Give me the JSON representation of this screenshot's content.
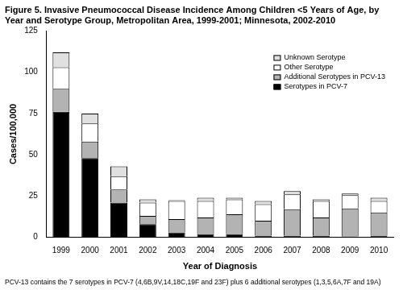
{
  "chart_data": {
    "type": "bar",
    "title": "Figure 5. Invasive Pneumococcal Disease Incidence Among Children <5 Years of Age, by Year and Serotype Group, Metropolitan Area, 1999-2001; Minnesota, 2002-2010",
    "x_label": "Year of Diagnosis",
    "y_label": "Cases/100,000",
    "footnote": "PCV-13 contains the 7 serotypes in PCV-7 (4,6B,9V,14,18C,19F and 23F) plus 6 additional serotypes (1,3,5,6A,7F and 19A)",
    "categories": [
      "1999",
      "2000",
      "2001",
      "2002",
      "2003",
      "2004",
      "2005",
      "2006",
      "2007",
      "2008",
      "2009",
      "2010"
    ],
    "series": [
      {
        "name": "Serotypes in PCV-7",
        "color": "#000000",
        "values": [
          76,
          48,
          21,
          8,
          3,
          2,
          2,
          1,
          1,
          1,
          0.5,
          1
        ]
      },
      {
        "name": "Additional Serotypes in PCV-13",
        "color": "#b3b3b3",
        "values": [
          14,
          10,
          8,
          5,
          8,
          10,
          12,
          9,
          16,
          11,
          17,
          14
        ]
      },
      {
        "name": "Other Serotype",
        "color": "#ffffff",
        "values": [
          13,
          11,
          8,
          8,
          11,
          10,
          9,
          10,
          9,
          10,
          8,
          7
        ]
      },
      {
        "name": "Unknown Serotype",
        "color": "#e0e0e0",
        "values": [
          9,
          6,
          6,
          2,
          0.5,
          2,
          1,
          2,
          2,
          1,
          1,
          2
        ]
      }
    ],
    "stacked": true,
    "ylim": [
      0,
      125
    ],
    "yticks": [
      0,
      25,
      50,
      75,
      100,
      125
    ],
    "grid": false,
    "legend": "upper right"
  }
}
